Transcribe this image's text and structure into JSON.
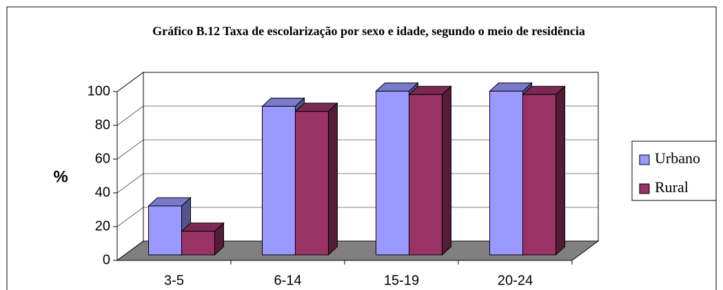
{
  "chart_data": {
    "type": "bar3d",
    "title": "Gráfico B.12 Taxa de escolarização por sexo e idade, segundo o meio de residência",
    "ylabel": "%",
    "categories": [
      "3-5",
      "6-14",
      "15-19",
      "20-24"
    ],
    "series": [
      {
        "name": "Urbano",
        "color": "#9999ff",
        "values": [
          29,
          88,
          97,
          97
        ]
      },
      {
        "name": "Rural",
        "color": "#993366",
        "values": [
          14,
          85,
          95,
          95
        ]
      }
    ],
    "ylim": [
      0,
      100
    ],
    "yticks": [
      0,
      20,
      40,
      60,
      80,
      100
    ],
    "grid": true,
    "legend": "right"
  }
}
